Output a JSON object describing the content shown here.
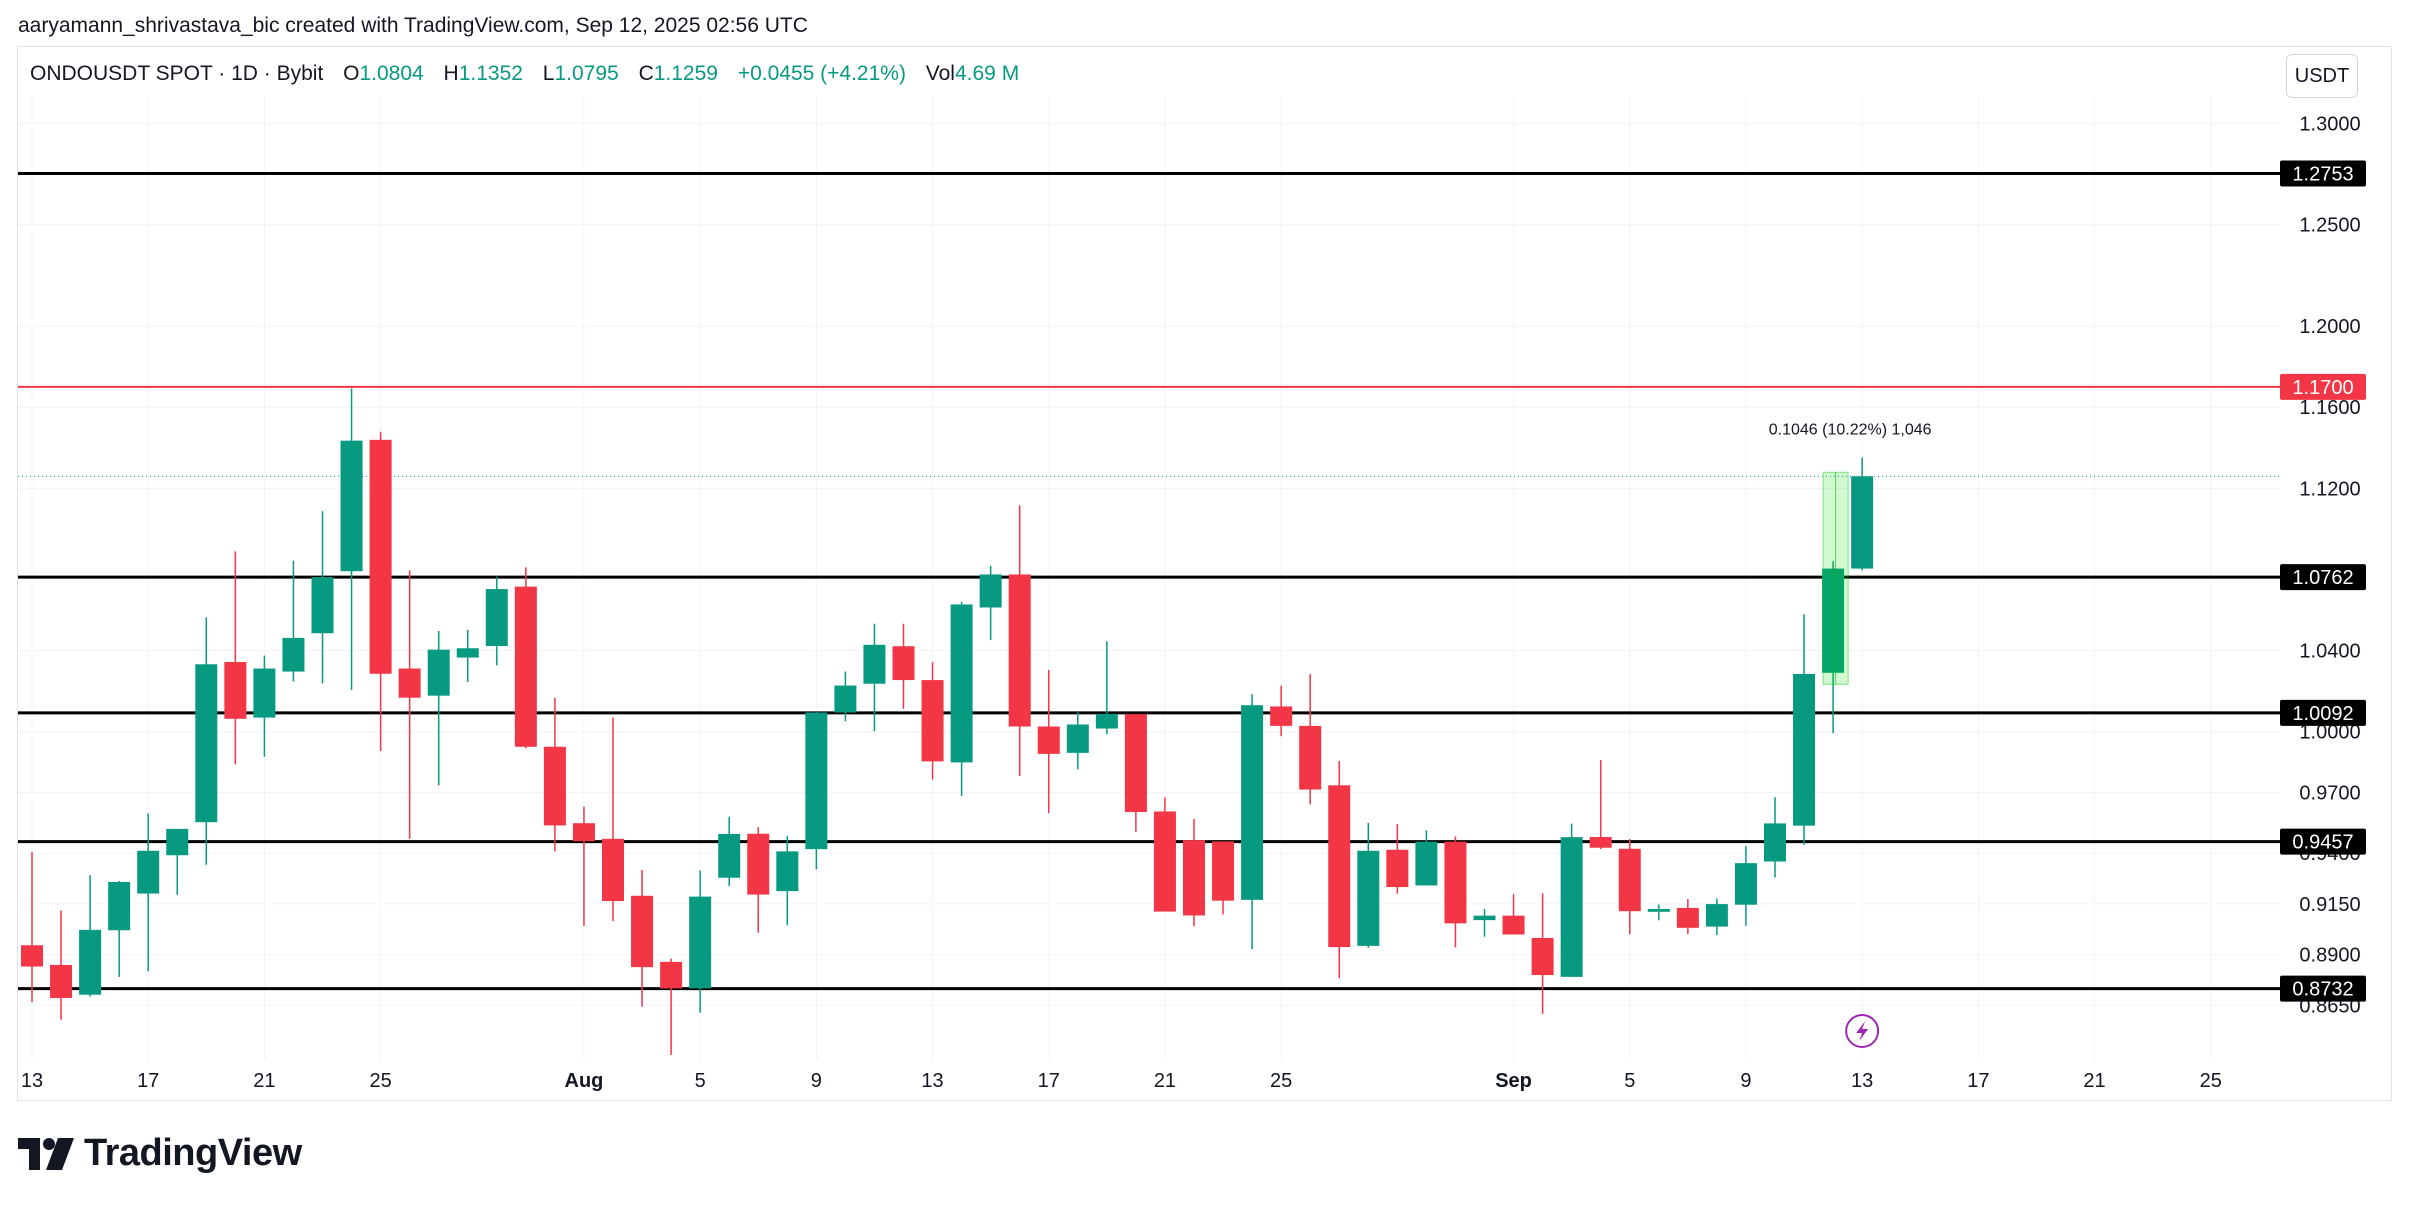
{
  "credit": "aaryamann_shrivastava_bic created with TradingView.com, Sep 12, 2025 02:56 UTC",
  "brand": "TradingView",
  "header": {
    "symbol": "ONDOUSDT SPOT · 1D · Bybit",
    "o_label": "O",
    "o_value": "1.0804",
    "h_label": "H",
    "h_value": "1.1352",
    "l_label": "L",
    "l_value": "1.0795",
    "c_label": "C",
    "c_value": "1.1259",
    "change": "+0.0455 (+4.21%)",
    "vol_label": "Vol",
    "vol_value": "4.69 M"
  },
  "currency_button": "USDT",
  "colors": {
    "up": "#089981",
    "down": "#f23645",
    "resistance": "#f23645",
    "level": "#000000",
    "measure": "#00e600"
  },
  "chart_data": {
    "type": "candlestick",
    "title": "ONDOUSDT SPOT · 1D · Bybit",
    "xlabel": "",
    "ylabel": "",
    "ylim": [
      0.838,
      1.3135
    ],
    "x_tick_labels": [
      "13",
      "17",
      "21",
      "25",
      "Aug",
      "5",
      "9",
      "13",
      "17",
      "21",
      "25",
      "Sep",
      "5",
      "9",
      "13",
      "17",
      "21",
      "25"
    ],
    "x_tick_day_index": [
      0,
      4,
      8,
      12,
      19,
      23,
      27,
      31,
      35,
      39,
      43,
      51,
      55,
      59,
      63,
      67,
      71,
      75
    ],
    "y_tick_labels": [
      "1.3000",
      "1.2500",
      "1.2000",
      "1.1600",
      "1.1200",
      "1.0400",
      "1.0000",
      "0.9700",
      "0.9400",
      "0.9150",
      "0.8900",
      "0.8650"
    ],
    "candles": [
      {
        "date": "Jul 11",
        "o": 0.8946,
        "h": 0.9407,
        "l": 0.8666,
        "c": 0.8841
      },
      {
        "date": "Jul 12",
        "o": 0.8849,
        "h": 0.9118,
        "l": 0.8579,
        "c": 0.8686
      },
      {
        "date": "Jul 13",
        "o": 0.8702,
        "h": 0.9292,
        "l": 0.8693,
        "c": 0.9022
      },
      {
        "date": "Jul 14",
        "o": 0.902,
        "h": 0.9263,
        "l": 0.879,
        "c": 0.9258
      },
      {
        "date": "Jul 15",
        "o": 0.9201,
        "h": 0.9596,
        "l": 0.8818,
        "c": 0.9412
      },
      {
        "date": "Jul 16",
        "o": 0.939,
        "h": 0.9481,
        "l": 0.9195,
        "c": 0.952
      },
      {
        "date": "Jul 17",
        "o": 0.9553,
        "h": 1.0563,
        "l": 0.9343,
        "c": 1.0332
      },
      {
        "date": "Jul 18",
        "o": 1.0343,
        "h": 1.0889,
        "l": 0.9838,
        "c": 1.0063
      },
      {
        "date": "Jul 19",
        "o": 1.0069,
        "h": 1.0375,
        "l": 0.9876,
        "c": 1.0311
      },
      {
        "date": "Jul 20",
        "o": 1.0296,
        "h": 1.0843,
        "l": 1.0247,
        "c": 1.0462
      },
      {
        "date": "Jul 21",
        "o": 1.0485,
        "h": 1.1087,
        "l": 1.0238,
        "c": 1.0762
      },
      {
        "date": "Jul 22",
        "o": 1.0791,
        "h": 1.1692,
        "l": 1.0205,
        "c": 1.1435
      },
      {
        "date": "Jul 23",
        "o": 1.1439,
        "h": 1.1479,
        "l": 0.9904,
        "c": 1.0285
      },
      {
        "date": "Jul 24",
        "o": 1.0311,
        "h": 1.0795,
        "l": 0.9471,
        "c": 1.0167
      },
      {
        "date": "Jul 25",
        "o": 1.0177,
        "h": 1.0496,
        "l": 0.9734,
        "c": 1.0404
      },
      {
        "date": "Jul 26",
        "o": 1.0365,
        "h": 1.0502,
        "l": 1.0244,
        "c": 1.0411
      },
      {
        "date": "Jul 27",
        "o": 1.0422,
        "h": 1.0765,
        "l": 1.0327,
        "c": 1.0703
      },
      {
        "date": "Jul 28",
        "o": 1.0715,
        "h": 1.081,
        "l": 0.9917,
        "c": 0.9925
      },
      {
        "date": "Jul 29",
        "o": 0.9925,
        "h": 1.0166,
        "l": 0.9409,
        "c": 0.9537
      },
      {
        "date": "Jul 30",
        "o": 0.9548,
        "h": 0.963,
        "l": 0.9041,
        "c": 0.9459
      },
      {
        "date": "Jul 31",
        "o": 0.9471,
        "h": 1.0069,
        "l": 0.9065,
        "c": 0.9164
      },
      {
        "date": "Aug 1",
        "o": 0.919,
        "h": 0.9317,
        "l": 0.8643,
        "c": 0.8838
      },
      {
        "date": "Aug 2",
        "o": 0.8864,
        "h": 0.888,
        "l": 0.8405,
        "c": 0.8733
      },
      {
        "date": "Aug 3",
        "o": 0.8733,
        "h": 0.9315,
        "l": 0.8613,
        "c": 0.9186
      },
      {
        "date": "Aug 4",
        "o": 0.9279,
        "h": 0.958,
        "l": 0.9238,
        "c": 0.9495
      },
      {
        "date": "Aug 5",
        "o": 0.9496,
        "h": 0.9529,
        "l": 0.9008,
        "c": 0.9196
      },
      {
        "date": "Aug 6",
        "o": 0.9213,
        "h": 0.9486,
        "l": 0.9044,
        "c": 0.9409
      },
      {
        "date": "Aug 7",
        "o": 0.942,
        "h": 1.0097,
        "l": 0.932,
        "c": 1.0094
      },
      {
        "date": "Aug 8",
        "o": 1.0094,
        "h": 1.0296,
        "l": 1.0051,
        "c": 1.0227
      },
      {
        "date": "Aug 9",
        "o": 1.0236,
        "h": 1.0532,
        "l": 1.0002,
        "c": 1.0428
      },
      {
        "date": "Aug 10",
        "o": 1.0421,
        "h": 1.0532,
        "l": 1.0112,
        "c": 1.0254
      },
      {
        "date": "Aug 11",
        "o": 1.0254,
        "h": 1.0342,
        "l": 0.9763,
        "c": 0.9853
      },
      {
        "date": "Aug 12",
        "o": 0.9848,
        "h": 1.064,
        "l": 0.9682,
        "c": 1.0627
      },
      {
        "date": "Aug 13",
        "o": 1.0612,
        "h": 1.0818,
        "l": 1.0451,
        "c": 1.0775
      },
      {
        "date": "Aug 14",
        "o": 1.0775,
        "h": 1.1116,
        "l": 0.9781,
        "c": 1.0025
      },
      {
        "date": "Aug 15",
        "o": 1.0025,
        "h": 1.0304,
        "l": 0.9598,
        "c": 0.989
      },
      {
        "date": "Aug 16",
        "o": 0.9895,
        "h": 1.0095,
        "l": 0.9814,
        "c": 1.0035
      },
      {
        "date": "Aug 17",
        "o": 1.0015,
        "h": 1.0445,
        "l": 0.9986,
        "c": 1.0087
      },
      {
        "date": "Aug 18",
        "o": 1.0086,
        "h": 1.008,
        "l": 0.9506,
        "c": 0.9603
      },
      {
        "date": "Aug 19",
        "o": 0.9606,
        "h": 0.9675,
        "l": 0.9123,
        "c": 0.9112
      },
      {
        "date": "Aug 20",
        "o": 0.9464,
        "h": 0.9569,
        "l": 0.904,
        "c": 0.9093
      },
      {
        "date": "Aug 21",
        "o": 0.9458,
        "h": 0.9427,
        "l": 0.9098,
        "c": 0.9166
      },
      {
        "date": "Aug 22",
        "o": 0.917,
        "h": 1.0185,
        "l": 0.8926,
        "c": 1.013
      },
      {
        "date": "Aug 23",
        "o": 1.0124,
        "h": 1.0227,
        "l": 0.9977,
        "c": 1.0028
      },
      {
        "date": "Aug 24",
        "o": 1.0028,
        "h": 1.0284,
        "l": 0.9641,
        "c": 0.9714
      },
      {
        "date": "Aug 25",
        "o": 0.9735,
        "h": 0.9855,
        "l": 0.8783,
        "c": 0.8937
      },
      {
        "date": "Aug 26",
        "o": 0.8943,
        "h": 0.9549,
        "l": 0.8934,
        "c": 0.9412
      },
      {
        "date": "Aug 27",
        "o": 0.9417,
        "h": 0.9544,
        "l": 0.92,
        "c": 0.9233
      },
      {
        "date": "Aug 28",
        "o": 0.9241,
        "h": 0.9513,
        "l": 0.9249,
        "c": 0.9457
      },
      {
        "date": "Aug 29",
        "o": 0.9457,
        "h": 0.9483,
        "l": 0.8935,
        "c": 0.9054
      },
      {
        "date": "Aug 30",
        "o": 0.907,
        "h": 0.9125,
        "l": 0.8988,
        "c": 0.9092
      },
      {
        "date": "Aug 31",
        "o": 0.9092,
        "h": 0.9198,
        "l": 0.9006,
        "c": 0.8999
      },
      {
        "date": "Sep 1",
        "o": 0.8982,
        "h": 0.9203,
        "l": 0.8608,
        "c": 0.8799
      },
      {
        "date": "Sep 2",
        "o": 0.879,
        "h": 0.9546,
        "l": 0.8791,
        "c": 0.9479
      },
      {
        "date": "Sep 3",
        "o": 0.948,
        "h": 0.986,
        "l": 0.9421,
        "c": 0.9427
      },
      {
        "date": "Sep 4",
        "o": 0.9422,
        "h": 0.947,
        "l": 0.9,
        "c": 0.9114
      },
      {
        "date": "Sep 5",
        "o": 0.9111,
        "h": 0.9147,
        "l": 0.9069,
        "c": 0.9125
      },
      {
        "date": "Sep 6",
        "o": 0.913,
        "h": 0.9174,
        "l": 0.9001,
        "c": 0.9032
      },
      {
        "date": "Sep 7",
        "o": 0.9038,
        "h": 0.9177,
        "l": 0.8997,
        "c": 0.9149
      },
      {
        "date": "Sep 8",
        "o": 0.9146,
        "h": 0.9435,
        "l": 0.9042,
        "c": 0.9351
      },
      {
        "date": "Sep 9",
        "o": 0.9359,
        "h": 0.9676,
        "l": 0.928,
        "c": 0.9547
      },
      {
        "date": "Sep 10",
        "o": 0.9536,
        "h": 1.0578,
        "l": 0.9442,
        "c": 1.0284
      },
      {
        "date": "Sep 11",
        "o": 1.029,
        "h": 1.0841,
        "l": 0.9992,
        "c": 1.0804
      },
      {
        "date": "Sep 12",
        "o": 1.0804,
        "h": 1.1352,
        "l": 1.0795,
        "c": 1.1259
      }
    ],
    "horizontal_levels": [
      {
        "price": 1.2753,
        "label": "1.2753",
        "style": "level"
      },
      {
        "price": 1.17,
        "label": "1.1700",
        "style": "resistance"
      },
      {
        "price": 1.0762,
        "label": "1.0762",
        "style": "level"
      },
      {
        "price": 1.0092,
        "label": "1.0092",
        "style": "level"
      },
      {
        "price": 0.9457,
        "label": "0.9457",
        "style": "level"
      },
      {
        "price": 0.8732,
        "label": "0.8732",
        "style": "level"
      }
    ],
    "last_price_line": 1.1259,
    "measurement": {
      "label": "0.1046 (10.22%) 1,046",
      "from": 1.0233,
      "to": 1.1279,
      "start_day": 62,
      "end_day": 63
    },
    "marker_day_index": 63
  }
}
